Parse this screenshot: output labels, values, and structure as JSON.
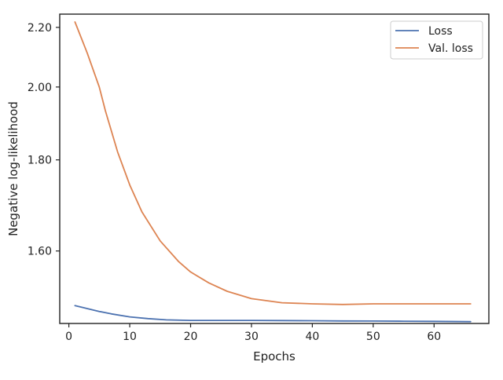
{
  "chart_data": {
    "type": "line",
    "title": "",
    "xlabel": "Epochs",
    "ylabel": "Negative log-likelihood",
    "xlim": [
      -1.5,
      69
    ],
    "ylim": [
      1.47,
      2.25
    ],
    "y_scale": "reciprocal",
    "xticks": [
      0,
      10,
      20,
      30,
      40,
      50,
      60
    ],
    "xtick_labels": [
      "0",
      "10",
      "20",
      "30",
      "40",
      "50",
      "60"
    ],
    "yticks": [
      1.6,
      1.8,
      2.0,
      2.2
    ],
    "ytick_labels": [
      "1.60",
      "1.80",
      "2.00",
      "2.20"
    ],
    "grid": false,
    "legend_position": "top-right",
    "series": [
      {
        "name": "Loss",
        "color": "#4c72b0",
        "x": [
          1,
          3,
          5,
          7,
          10,
          13,
          16,
          20,
          25,
          30,
          35,
          40,
          45,
          50,
          55,
          60,
          66
        ],
        "y": [
          1.5,
          1.495,
          1.49,
          1.486,
          1.481,
          1.478,
          1.476,
          1.475,
          1.475,
          1.475,
          1.4748,
          1.4745,
          1.4742,
          1.474,
          1.4738,
          1.4735,
          1.473
        ]
      },
      {
        "name": "Val. loss",
        "color": "#dd8452",
        "x": [
          1,
          3,
          5,
          6,
          8,
          10,
          12,
          15,
          18,
          20,
          23,
          26,
          30,
          35,
          40,
          45,
          50,
          55,
          60,
          66
        ],
        "y": [
          2.22,
          2.11,
          2.0,
          1.93,
          1.82,
          1.74,
          1.68,
          1.62,
          1.58,
          1.56,
          1.54,
          1.525,
          1.512,
          1.505,
          1.503,
          1.502,
          1.503,
          1.503,
          1.503,
          1.503
        ]
      }
    ]
  }
}
